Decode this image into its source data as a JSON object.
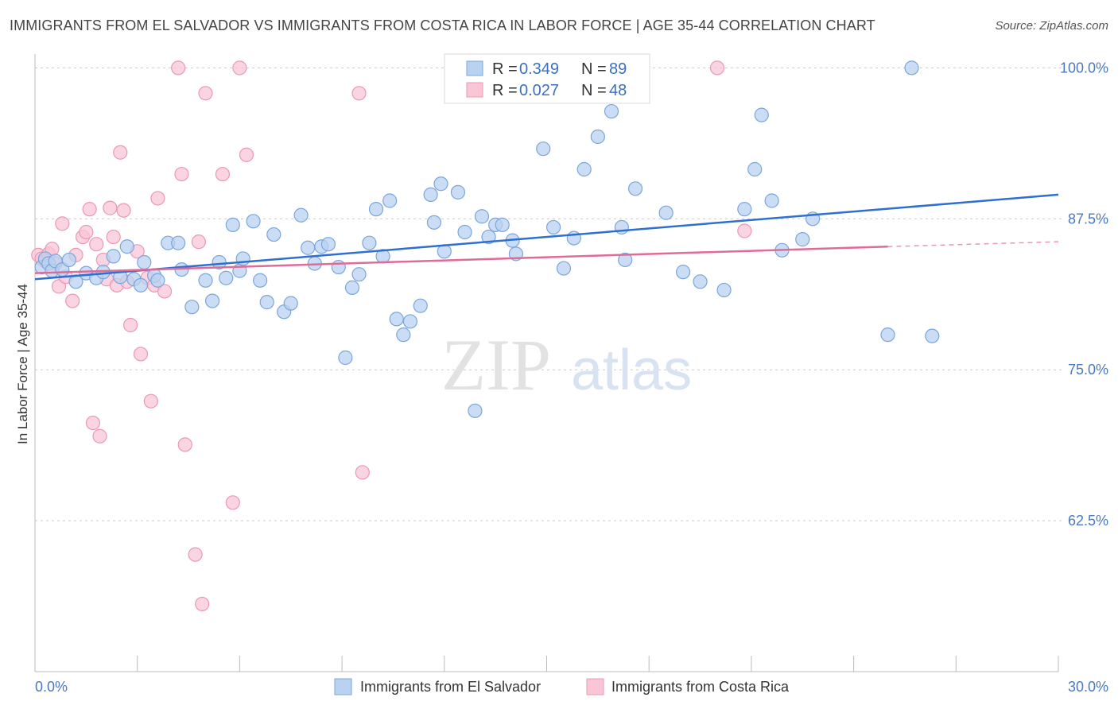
{
  "title": "IMMIGRANTS FROM EL SALVADOR VS IMMIGRANTS FROM COSTA RICA IN LABOR FORCE | AGE 35-44 CORRELATION CHART",
  "source": "Source: ZipAtlas.com",
  "watermark": {
    "zip": "ZIP",
    "atlas": "atlas"
  },
  "colors": {
    "blue_fill": "#b9d2f0",
    "blue_stroke": "#7aa6dc",
    "blue_line": "#2f6fcf",
    "pink_fill": "#f8c6d5",
    "pink_stroke": "#eb98b5",
    "pink_line": "#e06b98",
    "grid": "#c9c9c9",
    "axis_label": "#4a78c2"
  },
  "legend": {
    "r_label": "R =",
    "n_label": "N =",
    "rows": [
      {
        "r": "0.349",
        "n": "89"
      },
      {
        "r": "0.027",
        "n": "48"
      }
    ]
  },
  "chart_data": {
    "type": "scatter",
    "title": "IMMIGRANTS FROM EL SALVADOR VS IMMIGRANTS FROM COSTA RICA IN LABOR FORCE | AGE 35-44 CORRELATION CHART",
    "xlabel": "",
    "ylabel": "In Labor Force | Age 35-44",
    "xlim": [
      0,
      30
    ],
    "ylim": [
      50,
      102
    ],
    "x_tick_labels": [
      "0.0%",
      "30.0%"
    ],
    "y_ticks": [
      62.5,
      75.0,
      87.5,
      100.0
    ],
    "y_tick_labels": [
      "62.5%",
      "75.0%",
      "87.5%",
      "100.0%"
    ],
    "grid": "horizontal dashed",
    "legend_position": "bottom",
    "series": [
      {
        "name": "Immigrants from El Salvador",
        "color": "#b9d2f0",
        "trend": {
          "x": [
            0,
            30
          ],
          "y": [
            82.5,
            89.5
          ]
        },
        "points": [
          [
            0.2,
            83.5
          ],
          [
            0.3,
            84.2
          ],
          [
            0.4,
            83.8
          ],
          [
            0.5,
            83.2
          ],
          [
            0.6,
            84.0
          ],
          [
            0.8,
            83.3
          ],
          [
            1.0,
            84.1
          ],
          [
            1.2,
            82.3
          ],
          [
            1.5,
            83.0
          ],
          [
            1.8,
            82.6
          ],
          [
            2.0,
            83.1
          ],
          [
            2.3,
            84.4
          ],
          [
            2.5,
            82.7
          ],
          [
            2.7,
            85.2
          ],
          [
            2.9,
            82.5
          ],
          [
            3.1,
            82.0
          ],
          [
            3.2,
            83.9
          ],
          [
            3.5,
            82.8
          ],
          [
            3.6,
            82.4
          ],
          [
            3.9,
            85.5
          ],
          [
            4.2,
            85.5
          ],
          [
            4.3,
            83.3
          ],
          [
            4.6,
            80.2
          ],
          [
            5.0,
            82.4
          ],
          [
            5.2,
            80.7
          ],
          [
            5.4,
            83.9
          ],
          [
            5.6,
            82.6
          ],
          [
            5.8,
            87.0
          ],
          [
            6.0,
            83.2
          ],
          [
            6.1,
            84.2
          ],
          [
            6.4,
            87.3
          ],
          [
            6.6,
            82.4
          ],
          [
            6.8,
            80.6
          ],
          [
            7.0,
            86.2
          ],
          [
            7.3,
            79.8
          ],
          [
            7.5,
            80.5
          ],
          [
            7.8,
            87.8
          ],
          [
            8.0,
            85.1
          ],
          [
            8.2,
            83.8
          ],
          [
            8.4,
            85.2
          ],
          [
            8.6,
            85.4
          ],
          [
            8.9,
            83.5
          ],
          [
            9.1,
            76.0
          ],
          [
            9.3,
            81.8
          ],
          [
            9.5,
            82.9
          ],
          [
            9.8,
            85.5
          ],
          [
            10.0,
            88.3
          ],
          [
            10.2,
            84.4
          ],
          [
            10.4,
            89.0
          ],
          [
            10.6,
            79.2
          ],
          [
            10.8,
            77.9
          ],
          [
            11.0,
            79.0
          ],
          [
            11.3,
            80.3
          ],
          [
            11.6,
            89.5
          ],
          [
            11.7,
            87.2
          ],
          [
            11.9,
            90.4
          ],
          [
            12.0,
            84.8
          ],
          [
            12.4,
            89.7
          ],
          [
            12.6,
            86.4
          ],
          [
            12.9,
            71.6
          ],
          [
            13.1,
            87.7
          ],
          [
            13.3,
            86.0
          ],
          [
            13.5,
            87.0
          ],
          [
            13.7,
            87.0
          ],
          [
            14.0,
            85.7
          ],
          [
            14.1,
            84.6
          ],
          [
            14.9,
            93.3
          ],
          [
            15.2,
            86.8
          ],
          [
            15.5,
            83.4
          ],
          [
            15.8,
            85.9
          ],
          [
            16.1,
            91.6
          ],
          [
            16.5,
            94.3
          ],
          [
            16.9,
            96.4
          ],
          [
            17.2,
            86.8
          ],
          [
            17.3,
            84.1
          ],
          [
            17.6,
            90.0
          ],
          [
            18.5,
            88.0
          ],
          [
            19.0,
            83.1
          ],
          [
            19.5,
            82.3
          ],
          [
            20.2,
            81.6
          ],
          [
            20.8,
            88.3
          ],
          [
            21.1,
            91.6
          ],
          [
            21.3,
            96.1
          ],
          [
            21.6,
            89.0
          ],
          [
            21.9,
            84.9
          ],
          [
            22.5,
            85.8
          ],
          [
            22.8,
            87.5
          ],
          [
            25.0,
            77.9
          ],
          [
            25.7,
            100.0
          ],
          [
            26.3,
            77.8
          ]
        ]
      },
      {
        "name": "Immigrants from Costa Rica",
        "color": "#f8c6d5",
        "trend": {
          "x": [
            0,
            25.0
          ],
          "y": [
            83.0,
            85.2
          ]
        },
        "trend_dashed": {
          "x": [
            25.0,
            30
          ],
          "y": [
            85.2,
            85.6
          ]
        },
        "points": [
          [
            0.1,
            84.5
          ],
          [
            0.2,
            84.2
          ],
          [
            0.3,
            84.0
          ],
          [
            0.4,
            84.6
          ],
          [
            0.5,
            85.0
          ],
          [
            0.6,
            83.8
          ],
          [
            0.7,
            81.9
          ],
          [
            0.8,
            87.1
          ],
          [
            0.9,
            82.7
          ],
          [
            1.1,
            80.7
          ],
          [
            1.2,
            84.5
          ],
          [
            1.4,
            86.0
          ],
          [
            1.5,
            86.4
          ],
          [
            1.6,
            88.3
          ],
          [
            1.7,
            70.6
          ],
          [
            1.8,
            85.4
          ],
          [
            1.9,
            69.5
          ],
          [
            2.0,
            84.1
          ],
          [
            2.1,
            82.5
          ],
          [
            2.2,
            88.4
          ],
          [
            2.3,
            86.0
          ],
          [
            2.4,
            82.0
          ],
          [
            2.5,
            93.0
          ],
          [
            2.6,
            88.2
          ],
          [
            2.7,
            82.3
          ],
          [
            2.8,
            78.7
          ],
          [
            3.0,
            84.8
          ],
          [
            3.1,
            76.3
          ],
          [
            3.3,
            82.6
          ],
          [
            3.4,
            72.4
          ],
          [
            3.5,
            82.0
          ],
          [
            3.6,
            89.2
          ],
          [
            3.8,
            81.5
          ],
          [
            4.2,
            100.0
          ],
          [
            4.3,
            91.2
          ],
          [
            4.4,
            68.8
          ],
          [
            4.7,
            59.7
          ],
          [
            4.8,
            85.6
          ],
          [
            5.0,
            97.9
          ],
          [
            5.5,
            91.2
          ],
          [
            5.8,
            64.0
          ],
          [
            6.0,
            100.0
          ],
          [
            6.2,
            92.8
          ],
          [
            4.9,
            55.6
          ],
          [
            9.5,
            97.9
          ],
          [
            9.6,
            66.5
          ],
          [
            20.0,
            100.0
          ],
          [
            20.8,
            86.5
          ]
        ]
      }
    ]
  },
  "axis": {
    "y_title": "In Labor Force | Age 35-44",
    "x_left": "0.0%",
    "x_right": "30.0%"
  },
  "bottom_legend": [
    {
      "label": "Immigrants from El Salvador"
    },
    {
      "label": "Immigrants from Costa Rica"
    }
  ]
}
